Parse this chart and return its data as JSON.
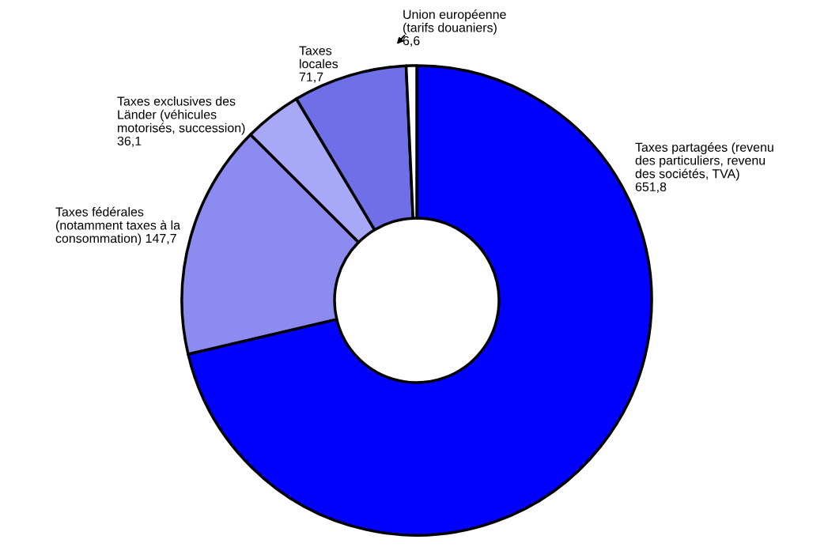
{
  "chart_data": {
    "type": "donut",
    "categories": [
      "Taxes partagées (revenu\ndes particuliers, revenu\ndes sociétés, TVA)",
      "Taxes fédérales\n(notamment taxes à la\nconsommation)",
      "Taxes exclusives des\nLänder (véhicules\nmotorisés, succession)",
      "Taxes\nlocales",
      "Union européenne\n(tarifs douaniers)"
    ],
    "values": [
      651.8,
      147.7,
      36.1,
      71.7,
      6.6
    ],
    "value_labels": [
      "651,8",
      "147,7",
      "36,1",
      "71,7",
      "6,6"
    ],
    "colors": [
      "#0000ff",
      "#8c8cf0",
      "#a8a8f8",
      "#6f6fe8",
      "#ffffff"
    ]
  }
}
